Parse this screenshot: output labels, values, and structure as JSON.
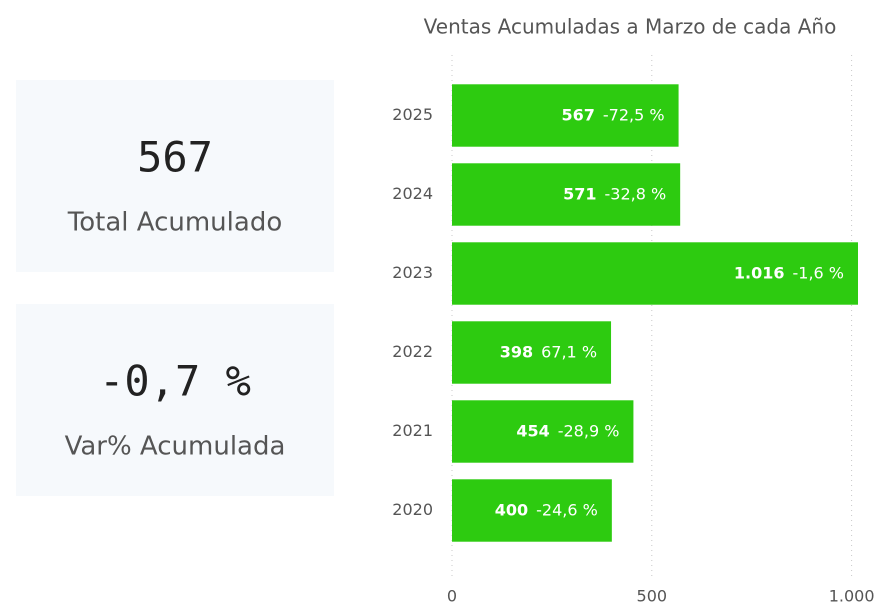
{
  "cards": [
    {
      "value": "567",
      "label": "Total Acumulado"
    },
    {
      "value": "-0,7 %",
      "label": "Var% Acumulada"
    }
  ],
  "chart_data": {
    "type": "bar",
    "orientation": "horizontal",
    "title": "Ventas Acumuladas a Marzo de cada Año",
    "categories": [
      "2025",
      "2024",
      "2023",
      "2022",
      "2021",
      "2020"
    ],
    "values": [
      567,
      571,
      1016,
      398,
      454,
      400
    ],
    "value_labels": [
      "567",
      "571",
      "1.016",
      "398",
      "454",
      "400"
    ],
    "change_labels": [
      "-72,5 %",
      "-32,8 %",
      "-1,6 %",
      "67,1 %",
      "-28,9 %",
      "-24,6 %"
    ],
    "color": "#2dcb10",
    "xlim": [
      0,
      1016
    ],
    "xticks": [
      0,
      500,
      {
        "value": 1000,
        "label": "1.000"
      }
    ],
    "grid": true
  }
}
